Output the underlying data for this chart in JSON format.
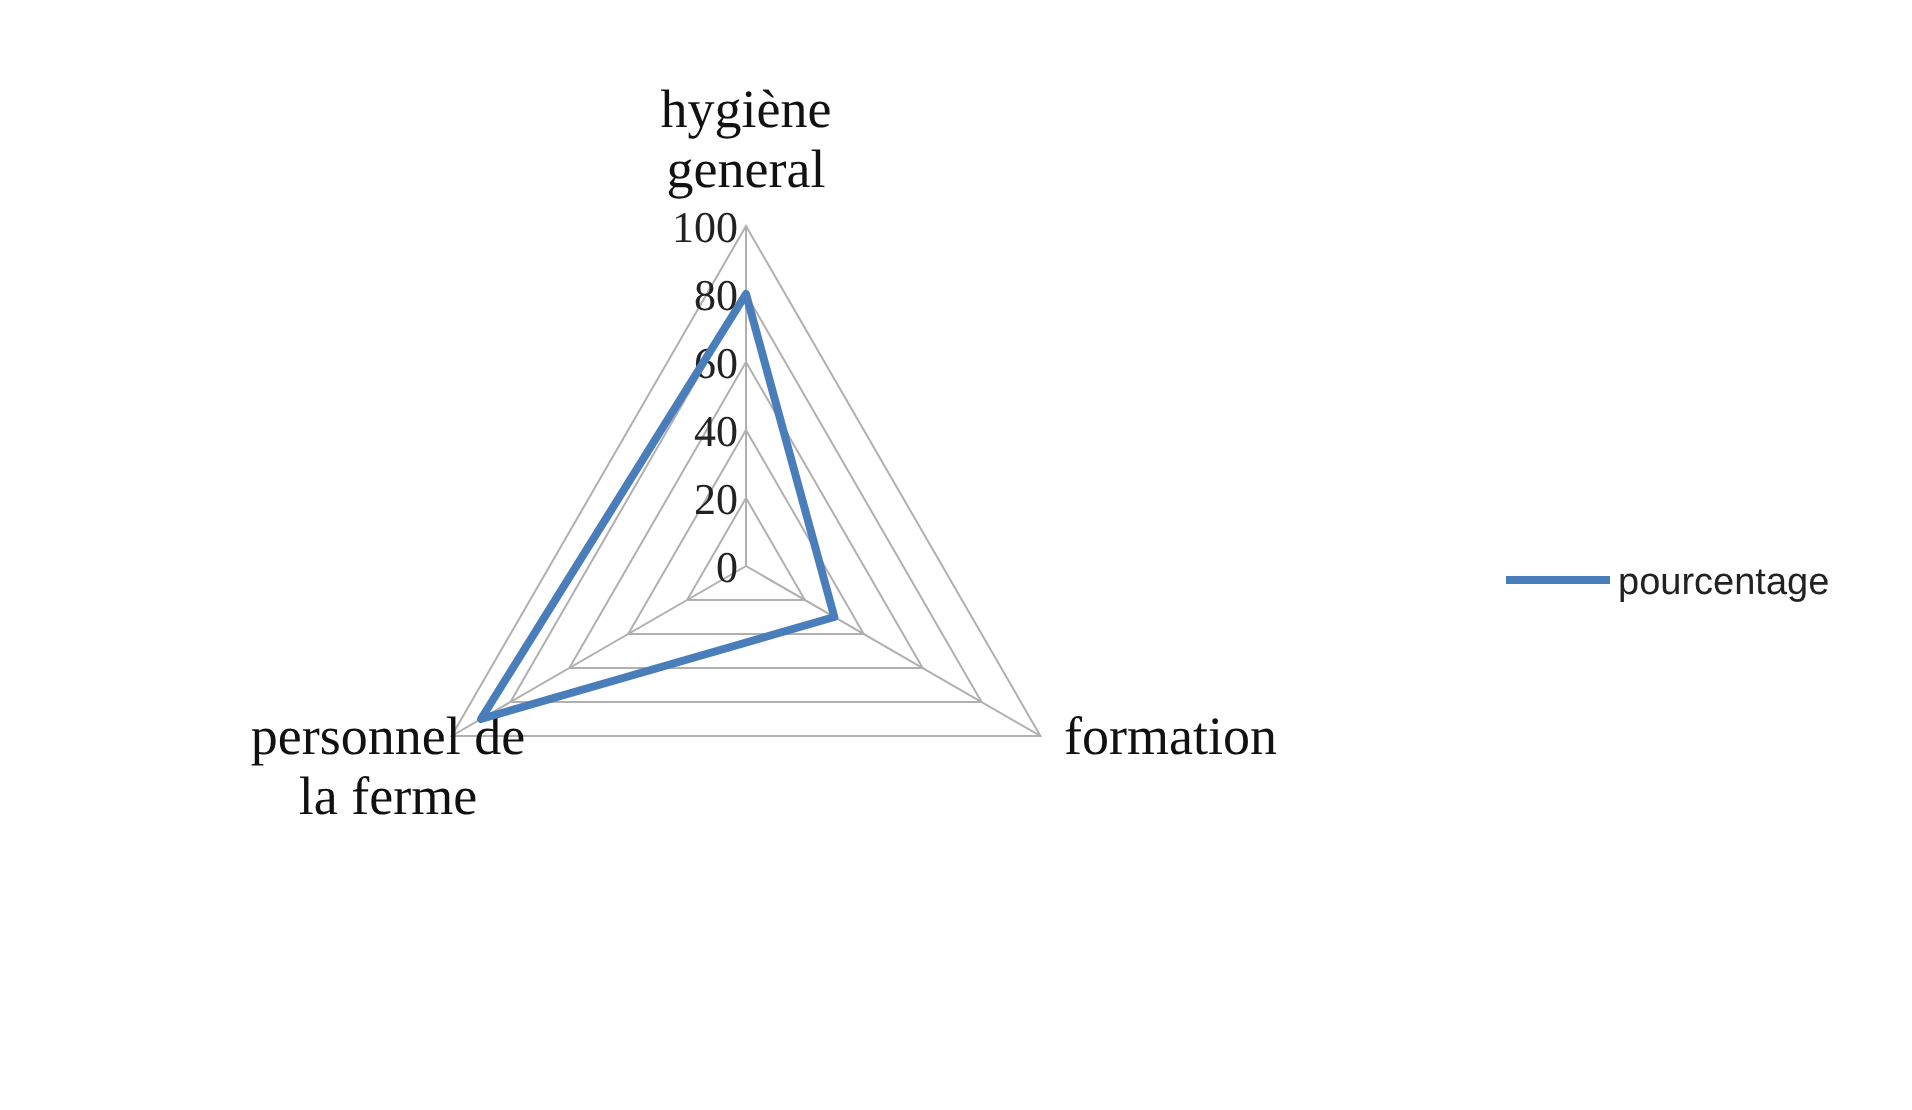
{
  "chart_data": {
    "type": "radar",
    "categories": [
      "hygiène\ngeneral",
      "formation",
      "personnel de\nla ferme"
    ],
    "series": [
      {
        "name": "pourcentage",
        "color": "#4a7ebb",
        "values": [
          80,
          30,
          90
        ]
      }
    ],
    "ylim": [
      0,
      100
    ],
    "yticks": [
      0,
      20,
      40,
      60,
      80,
      100
    ],
    "grid": true,
    "legend": "right",
    "marker": "none"
  }
}
